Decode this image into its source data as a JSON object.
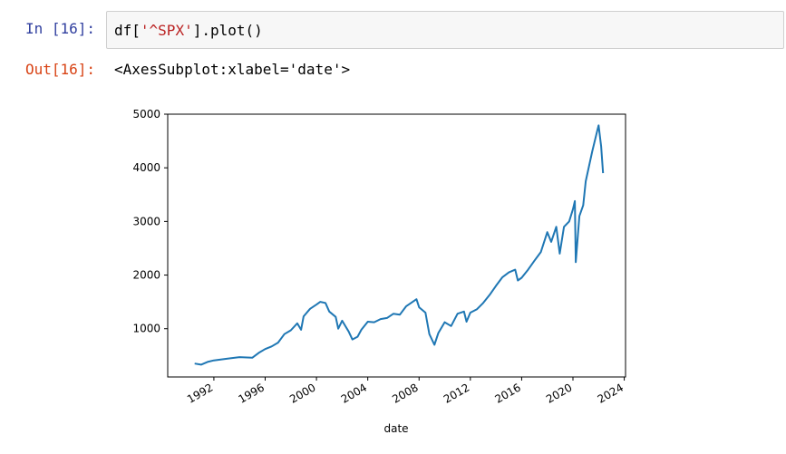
{
  "input": {
    "prompt": "In [16]:",
    "code_tokens": [
      "df[",
      "'^SPX'",
      "].plot()"
    ]
  },
  "output": {
    "prompt": "Out[16]:",
    "text": "<AxesSubplot:xlabel='date'>"
  },
  "chart_data": {
    "type": "line",
    "xlabel": "date",
    "color": "#1f77b4",
    "x": [
      1990.5,
      1991,
      1991.5,
      1992,
      1993,
      1994,
      1995,
      1995.5,
      1996,
      1996.5,
      1997,
      1997.5,
      1998,
      1998.5,
      1998.8,
      1999,
      1999.5,
      2000,
      2000.3,
      2000.7,
      2001,
      2001.5,
      2001.7,
      2002,
      2002.5,
      2002.8,
      2003.2,
      2003.5,
      2004,
      2004.5,
      2005,
      2005.5,
      2006,
      2006.5,
      2007,
      2007.5,
      2007.8,
      2008,
      2008.5,
      2008.8,
      2009.2,
      2009.5,
      2010,
      2010.5,
      2011,
      2011.5,
      2011.7,
      2012,
      2012.5,
      2013,
      2013.5,
      2014,
      2014.5,
      2015,
      2015.5,
      2015.7,
      2016,
      2016.5,
      2017,
      2017.5,
      2018,
      2018.3,
      2018.7,
      2018.97,
      2019.3,
      2019.7,
      2020,
      2020.15,
      2020.22,
      2020.5,
      2020.8,
      2021,
      2021.5,
      2021.9,
      2022,
      2022.2,
      2022.35
    ],
    "values": [
      350,
      330,
      380,
      410,
      440,
      470,
      460,
      550,
      620,
      670,
      740,
      900,
      970,
      1100,
      980,
      1230,
      1370,
      1450,
      1500,
      1480,
      1320,
      1220,
      1000,
      1150,
      950,
      800,
      850,
      980,
      1130,
      1120,
      1180,
      1200,
      1280,
      1260,
      1420,
      1500,
      1550,
      1400,
      1300,
      900,
      700,
      920,
      1120,
      1050,
      1280,
      1320,
      1130,
      1300,
      1360,
      1480,
      1630,
      1800,
      1960,
      2050,
      2100,
      1900,
      1950,
      2100,
      2270,
      2430,
      2800,
      2620,
      2900,
      2400,
      2900,
      3000,
      3230,
      3380,
      2240,
      3100,
      3300,
      3750,
      4300,
      4700,
      4790,
      4400,
      3900
    ],
    "xlim": [
      1988.4,
      2024.1
    ],
    "ylim": [
      100,
      5000
    ],
    "xticks": [
      1992,
      1996,
      2000,
      2004,
      2008,
      2012,
      2016,
      2020,
      2024
    ],
    "yticks": [
      1000,
      2000,
      3000,
      4000,
      5000
    ]
  }
}
